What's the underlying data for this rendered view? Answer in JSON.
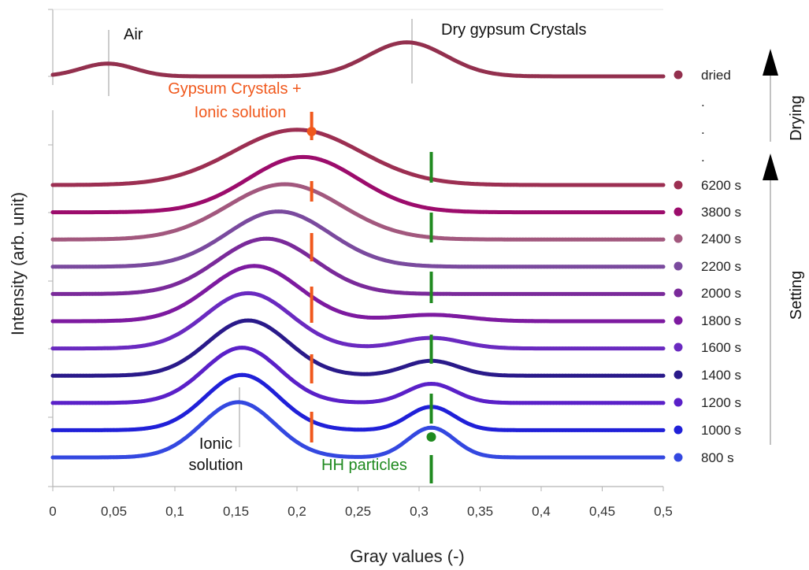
{
  "chart_data": {
    "type": "line",
    "xlabel": "Gray values (-)",
    "ylabel": "Intensity (arb. unit)",
    "xlim": [
      0,
      0.5
    ],
    "x_ticks": [
      "0",
      "0,05",
      "0,1",
      "0,15",
      "0,2",
      "0,25",
      "0,3",
      "0,35",
      "0,4",
      "0,45",
      "0,5"
    ],
    "grid": false,
    "legend_placement": "right",
    "series": [
      {
        "name": "dried",
        "color": "#93304e",
        "baseline": 0.0,
        "peaks": [
          [
            0.045,
            0.06,
            0.022
          ],
          [
            0.29,
            0.16,
            0.032
          ]
        ]
      },
      {
        "name": "6200 s",
        "color": "#9c2f52",
        "baseline": 0.0,
        "peaks": [
          [
            0.2,
            0.26,
            0.052
          ]
        ]
      },
      {
        "name": "3800 s",
        "color": "#9c0c6c",
        "baseline": 0.0,
        "peaks": [
          [
            0.205,
            0.26,
            0.045
          ]
        ]
      },
      {
        "name": "2400 s",
        "color": "#a2587e",
        "baseline": 0.0,
        "peaks": [
          [
            0.19,
            0.26,
            0.047
          ]
        ]
      },
      {
        "name": "2200 s",
        "color": "#7a4a9e",
        "baseline": 0.0,
        "peaks": [
          [
            0.185,
            0.26,
            0.042
          ]
        ]
      },
      {
        "name": "2000 s",
        "color": "#7a2a9a",
        "baseline": 0.0,
        "peaks": [
          [
            0.175,
            0.26,
            0.04
          ]
        ]
      },
      {
        "name": "1800 s",
        "color": "#7d1aa0",
        "baseline": 0.0,
        "peaks": [
          [
            0.165,
            0.26,
            0.037
          ],
          [
            0.31,
            0.03,
            0.03
          ]
        ]
      },
      {
        "name": "1600 s",
        "color": "#6a2ac0",
        "baseline": 0.0,
        "peaks": [
          [
            0.16,
            0.26,
            0.035
          ],
          [
            0.31,
            0.05,
            0.025
          ]
        ]
      },
      {
        "name": "1400 s",
        "color": "#2a1a8a",
        "baseline": 0.0,
        "peaks": [
          [
            0.16,
            0.26,
            0.033
          ],
          [
            0.31,
            0.07,
            0.022
          ]
        ]
      },
      {
        "name": "1200 s",
        "color": "#5a20c8",
        "baseline": 0.0,
        "peaks": [
          [
            0.155,
            0.26,
            0.031
          ],
          [
            0.31,
            0.09,
            0.02
          ]
        ]
      },
      {
        "name": "1000 s",
        "color": "#2020d8",
        "baseline": 0.0,
        "peaks": [
          [
            0.155,
            0.26,
            0.03
          ],
          [
            0.31,
            0.11,
            0.019
          ]
        ]
      },
      {
        "name": "800 s",
        "color": "#3448e0",
        "baseline": 0.0,
        "peaks": [
          [
            0.152,
            0.26,
            0.03
          ],
          [
            0.31,
            0.14,
            0.019
          ]
        ]
      }
    ],
    "annotations": {
      "air": "Air",
      "dry_gypsum": "Dry gypsum Crystals",
      "gypsum_ionic_1": "Gypsum Crystals +",
      "gypsum_ionic_2": "Ionic solution",
      "ionic_1": "Ionic",
      "ionic_2": "solution",
      "hh_particles": "HH particles",
      "drying": "Drying",
      "setting": "Setting",
      "dots": [
        ".",
        ".",
        "."
      ]
    },
    "markers": {
      "orange_x": 0.212,
      "green_x": 0.31,
      "orange_color": "#f0581c",
      "green_color": "#1f8a1f"
    }
  }
}
